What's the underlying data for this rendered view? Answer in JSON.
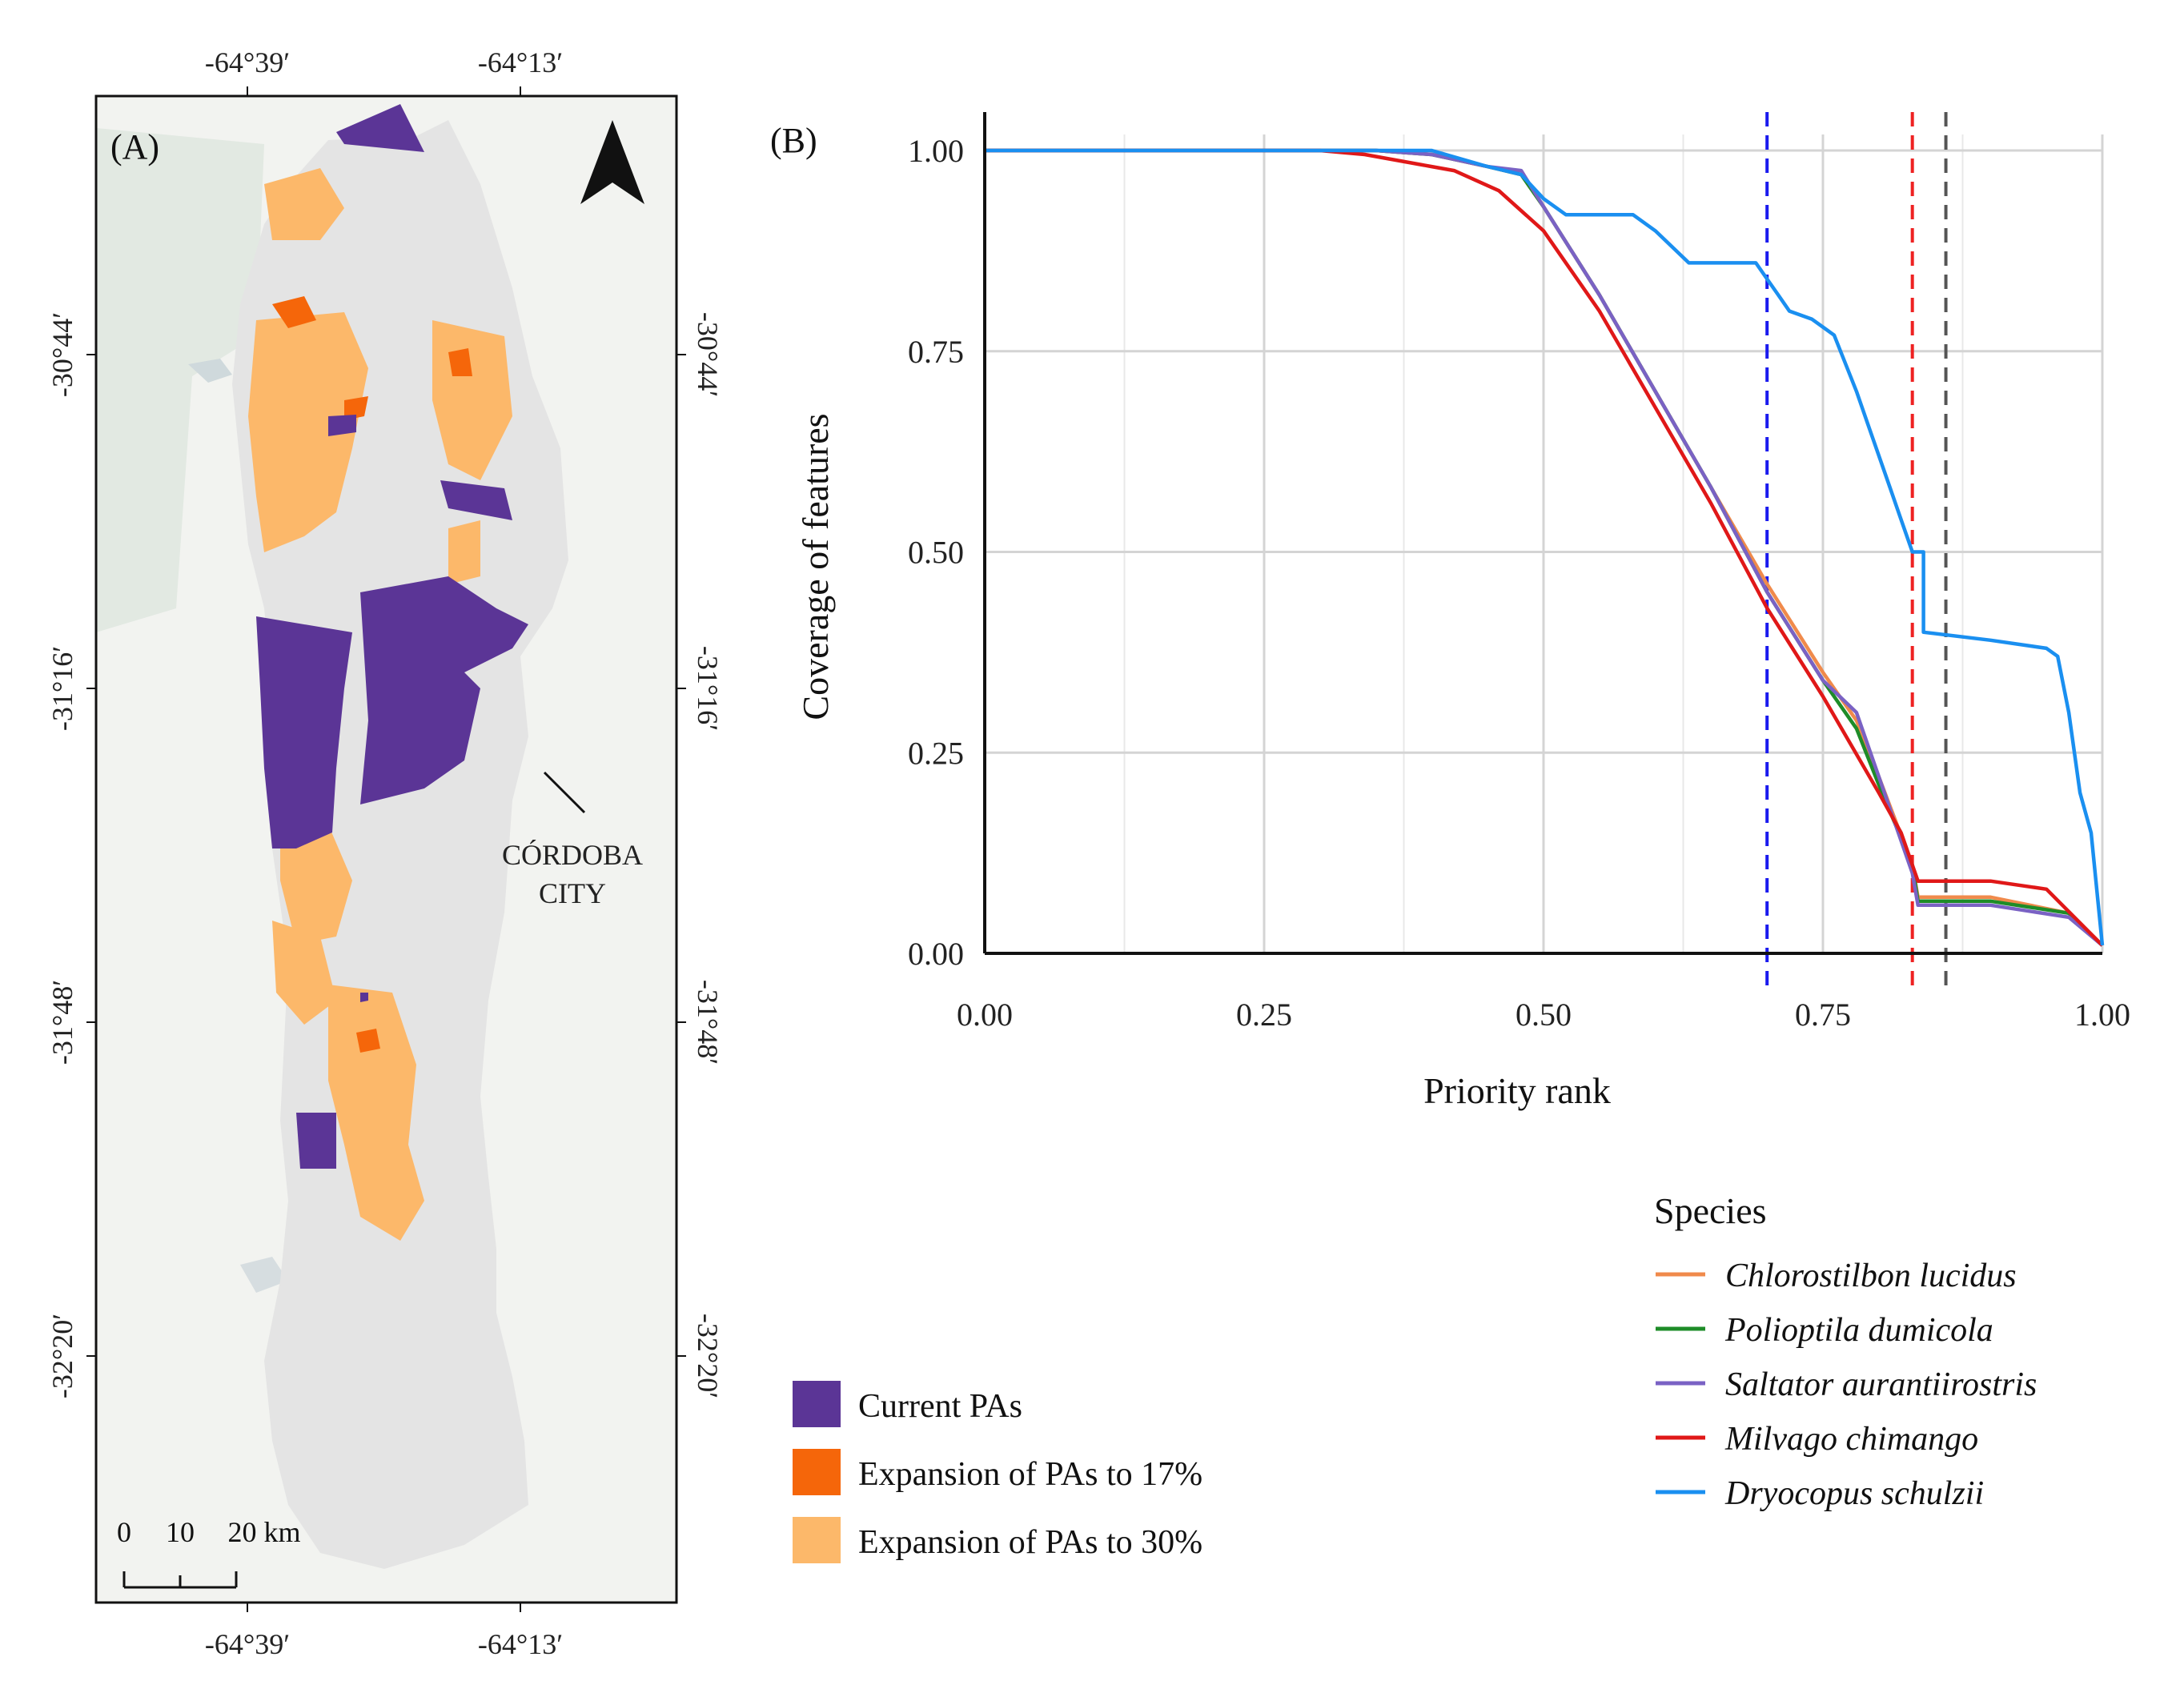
{
  "panel_a": {
    "label": "(A)",
    "lon_ticks_top": [
      "-64°39′",
      "-64°13′"
    ],
    "lon_ticks_bottom": [
      "-64°39′",
      "-64°13′"
    ],
    "lat_ticks_left": [
      "-30°44′",
      "-31°16′",
      "-31°48′",
      "-32°20′"
    ],
    "lat_ticks_right": [
      "-30°44′",
      "-31°16′",
      "-31°48′",
      "-32°20′"
    ],
    "city_label_1": "CÓRDOBA",
    "city_label_2": "CITY",
    "scale_labels": [
      "0",
      "10",
      "20 km"
    ],
    "colors": {
      "current": "#5b3596",
      "exp17": "#f5660a",
      "exp30": "#fcb86a",
      "region": "#e4e4e4",
      "background": "#f2f3f0"
    }
  },
  "map_legend": {
    "items": [
      {
        "label": "Current PAs",
        "color": "#5b3596"
      },
      {
        "label": "Expansion of PAs to 17%",
        "color": "#f5660a"
      },
      {
        "label": "Expansion of PAs to 30%",
        "color": "#fcb86a"
      }
    ]
  },
  "chart_data": {
    "type": "line",
    "panel_label": "(B)",
    "title": "",
    "xlabel": "Priority rank",
    "ylabel": "Coverage of features",
    "xlim": [
      0,
      1
    ],
    "ylim": [
      0,
      1
    ],
    "x_ticks": [
      0,
      0.25,
      0.5,
      0.75,
      1
    ],
    "x_tick_labels": [
      "0.00",
      "0.25",
      "0.50",
      "0.75",
      "1.00"
    ],
    "y_ticks": [
      0,
      0.25,
      0.5,
      0.75,
      1
    ],
    "y_tick_labels": [
      "0.00",
      "0.25",
      "0.50",
      "0.75",
      "1.00"
    ],
    "grid": true,
    "vlines": [
      {
        "x": 0.7,
        "color": "#1a1aee"
      },
      {
        "x": 0.83,
        "color": "#ee2222"
      },
      {
        "x": 0.86,
        "color": "#555555"
      }
    ],
    "legend_title": "Species",
    "series": [
      {
        "name": "Chlorostilbon lucidus",
        "color": "#f08a4b",
        "x": [
          0,
          0.3,
          0.35,
          0.4,
          0.45,
          0.48,
          0.5,
          0.55,
          0.6,
          0.65,
          0.7,
          0.75,
          0.78,
          0.8,
          0.83,
          0.835,
          0.9,
          0.97,
          1.0
        ],
        "y": [
          1,
          1,
          1,
          0.995,
          0.98,
          0.97,
          0.93,
          0.82,
          0.7,
          0.58,
          0.46,
          0.35,
          0.29,
          0.22,
          0.11,
          0.07,
          0.07,
          0.05,
          0.01
        ]
      },
      {
        "name": "Polioptila dumicola",
        "color": "#1e8c28",
        "x": [
          0,
          0.3,
          0.35,
          0.4,
          0.45,
          0.48,
          0.5,
          0.55,
          0.6,
          0.65,
          0.7,
          0.75,
          0.78,
          0.8,
          0.83,
          0.835,
          0.9,
          0.97,
          1.0
        ],
        "y": [
          1,
          1,
          1,
          0.995,
          0.98,
          0.97,
          0.93,
          0.82,
          0.7,
          0.58,
          0.45,
          0.34,
          0.28,
          0.21,
          0.11,
          0.065,
          0.065,
          0.05,
          0.01
        ]
      },
      {
        "name": "Saltator aurantiirostris",
        "color": "#7a62c4",
        "x": [
          0,
          0.3,
          0.35,
          0.4,
          0.45,
          0.48,
          0.5,
          0.55,
          0.6,
          0.65,
          0.7,
          0.75,
          0.78,
          0.8,
          0.83,
          0.835,
          0.9,
          0.97,
          1.0
        ],
        "y": [
          1,
          1,
          1,
          0.995,
          0.98,
          0.975,
          0.93,
          0.82,
          0.7,
          0.58,
          0.45,
          0.34,
          0.3,
          0.22,
          0.1,
          0.06,
          0.06,
          0.045,
          0.01
        ]
      },
      {
        "name": "Milvago chimango",
        "color": "#e01818",
        "x": [
          0,
          0.3,
          0.34,
          0.4,
          0.42,
          0.46,
          0.5,
          0.55,
          0.6,
          0.65,
          0.7,
          0.75,
          0.8,
          0.82,
          0.835,
          0.9,
          0.95,
          1.0
        ],
        "y": [
          1,
          1,
          0.995,
          0.98,
          0.975,
          0.95,
          0.9,
          0.8,
          0.68,
          0.56,
          0.43,
          0.32,
          0.2,
          0.15,
          0.09,
          0.09,
          0.08,
          0.01
        ]
      },
      {
        "name": "Dryocopus schulzii",
        "color": "#1a8ff0",
        "x": [
          0,
          0.3,
          0.4,
          0.45,
          0.48,
          0.5,
          0.52,
          0.58,
          0.6,
          0.63,
          0.67,
          0.69,
          0.7,
          0.71,
          0.72,
          0.74,
          0.76,
          0.78,
          0.79,
          0.8,
          0.81,
          0.82,
          0.83,
          0.84,
          0.84,
          0.9,
          0.95,
          0.96,
          0.97,
          0.98,
          0.99,
          1.0
        ],
        "y": [
          1,
          1,
          1,
          0.98,
          0.97,
          0.94,
          0.92,
          0.92,
          0.9,
          0.86,
          0.86,
          0.86,
          0.84,
          0.82,
          0.8,
          0.79,
          0.77,
          0.7,
          0.66,
          0.62,
          0.58,
          0.54,
          0.5,
          0.5,
          0.4,
          0.39,
          0.38,
          0.37,
          0.3,
          0.2,
          0.15,
          0.01
        ]
      }
    ]
  }
}
